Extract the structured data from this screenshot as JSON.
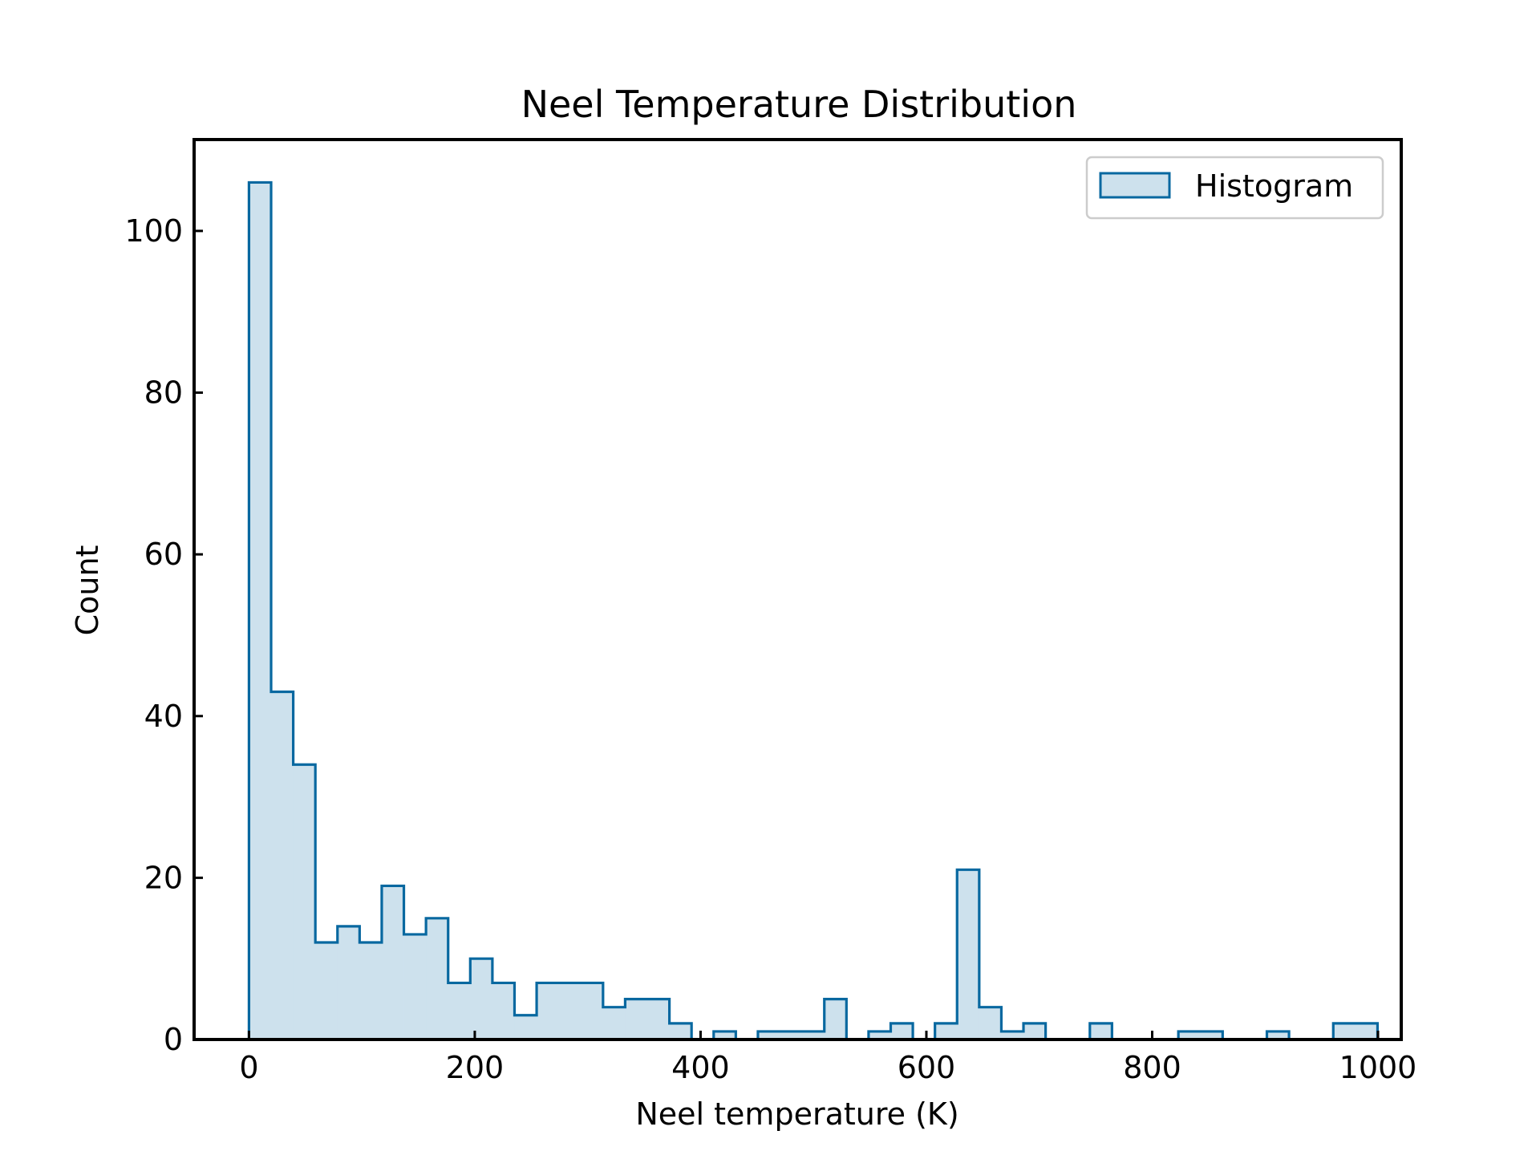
{
  "chart_data": {
    "type": "bar",
    "title": "Neel Temperature Distribution",
    "xlabel": "Neel temperature (K)",
    "ylabel": "Count",
    "xlim": [
      -48.6,
      1020.6
    ],
    "ylim": [
      0,
      111.3
    ],
    "xticks": [
      0,
      200,
      400,
      600,
      800,
      1000
    ],
    "yticks": [
      0,
      20,
      40,
      60,
      80,
      100
    ],
    "grid": false,
    "legend": {
      "placement": "top-right",
      "entries": [
        "Histogram"
      ]
    },
    "colors": {
      "edge": "#0868a0",
      "fill": "#cde1ed"
    },
    "bin_start": 0,
    "bin_width": 19.6,
    "counts": [
      106,
      43,
      34,
      12,
      14,
      12,
      19,
      13,
      15,
      7,
      10,
      7,
      3,
      7,
      7,
      7,
      4,
      5,
      5,
      2,
      0,
      1,
      0,
      1,
      1,
      1,
      5,
      0,
      1,
      2,
      0,
      2,
      21,
      4,
      1,
      2,
      0,
      0,
      2,
      0,
      0,
      0,
      1,
      1,
      0,
      0,
      1,
      0,
      0,
      2,
      2
    ]
  }
}
